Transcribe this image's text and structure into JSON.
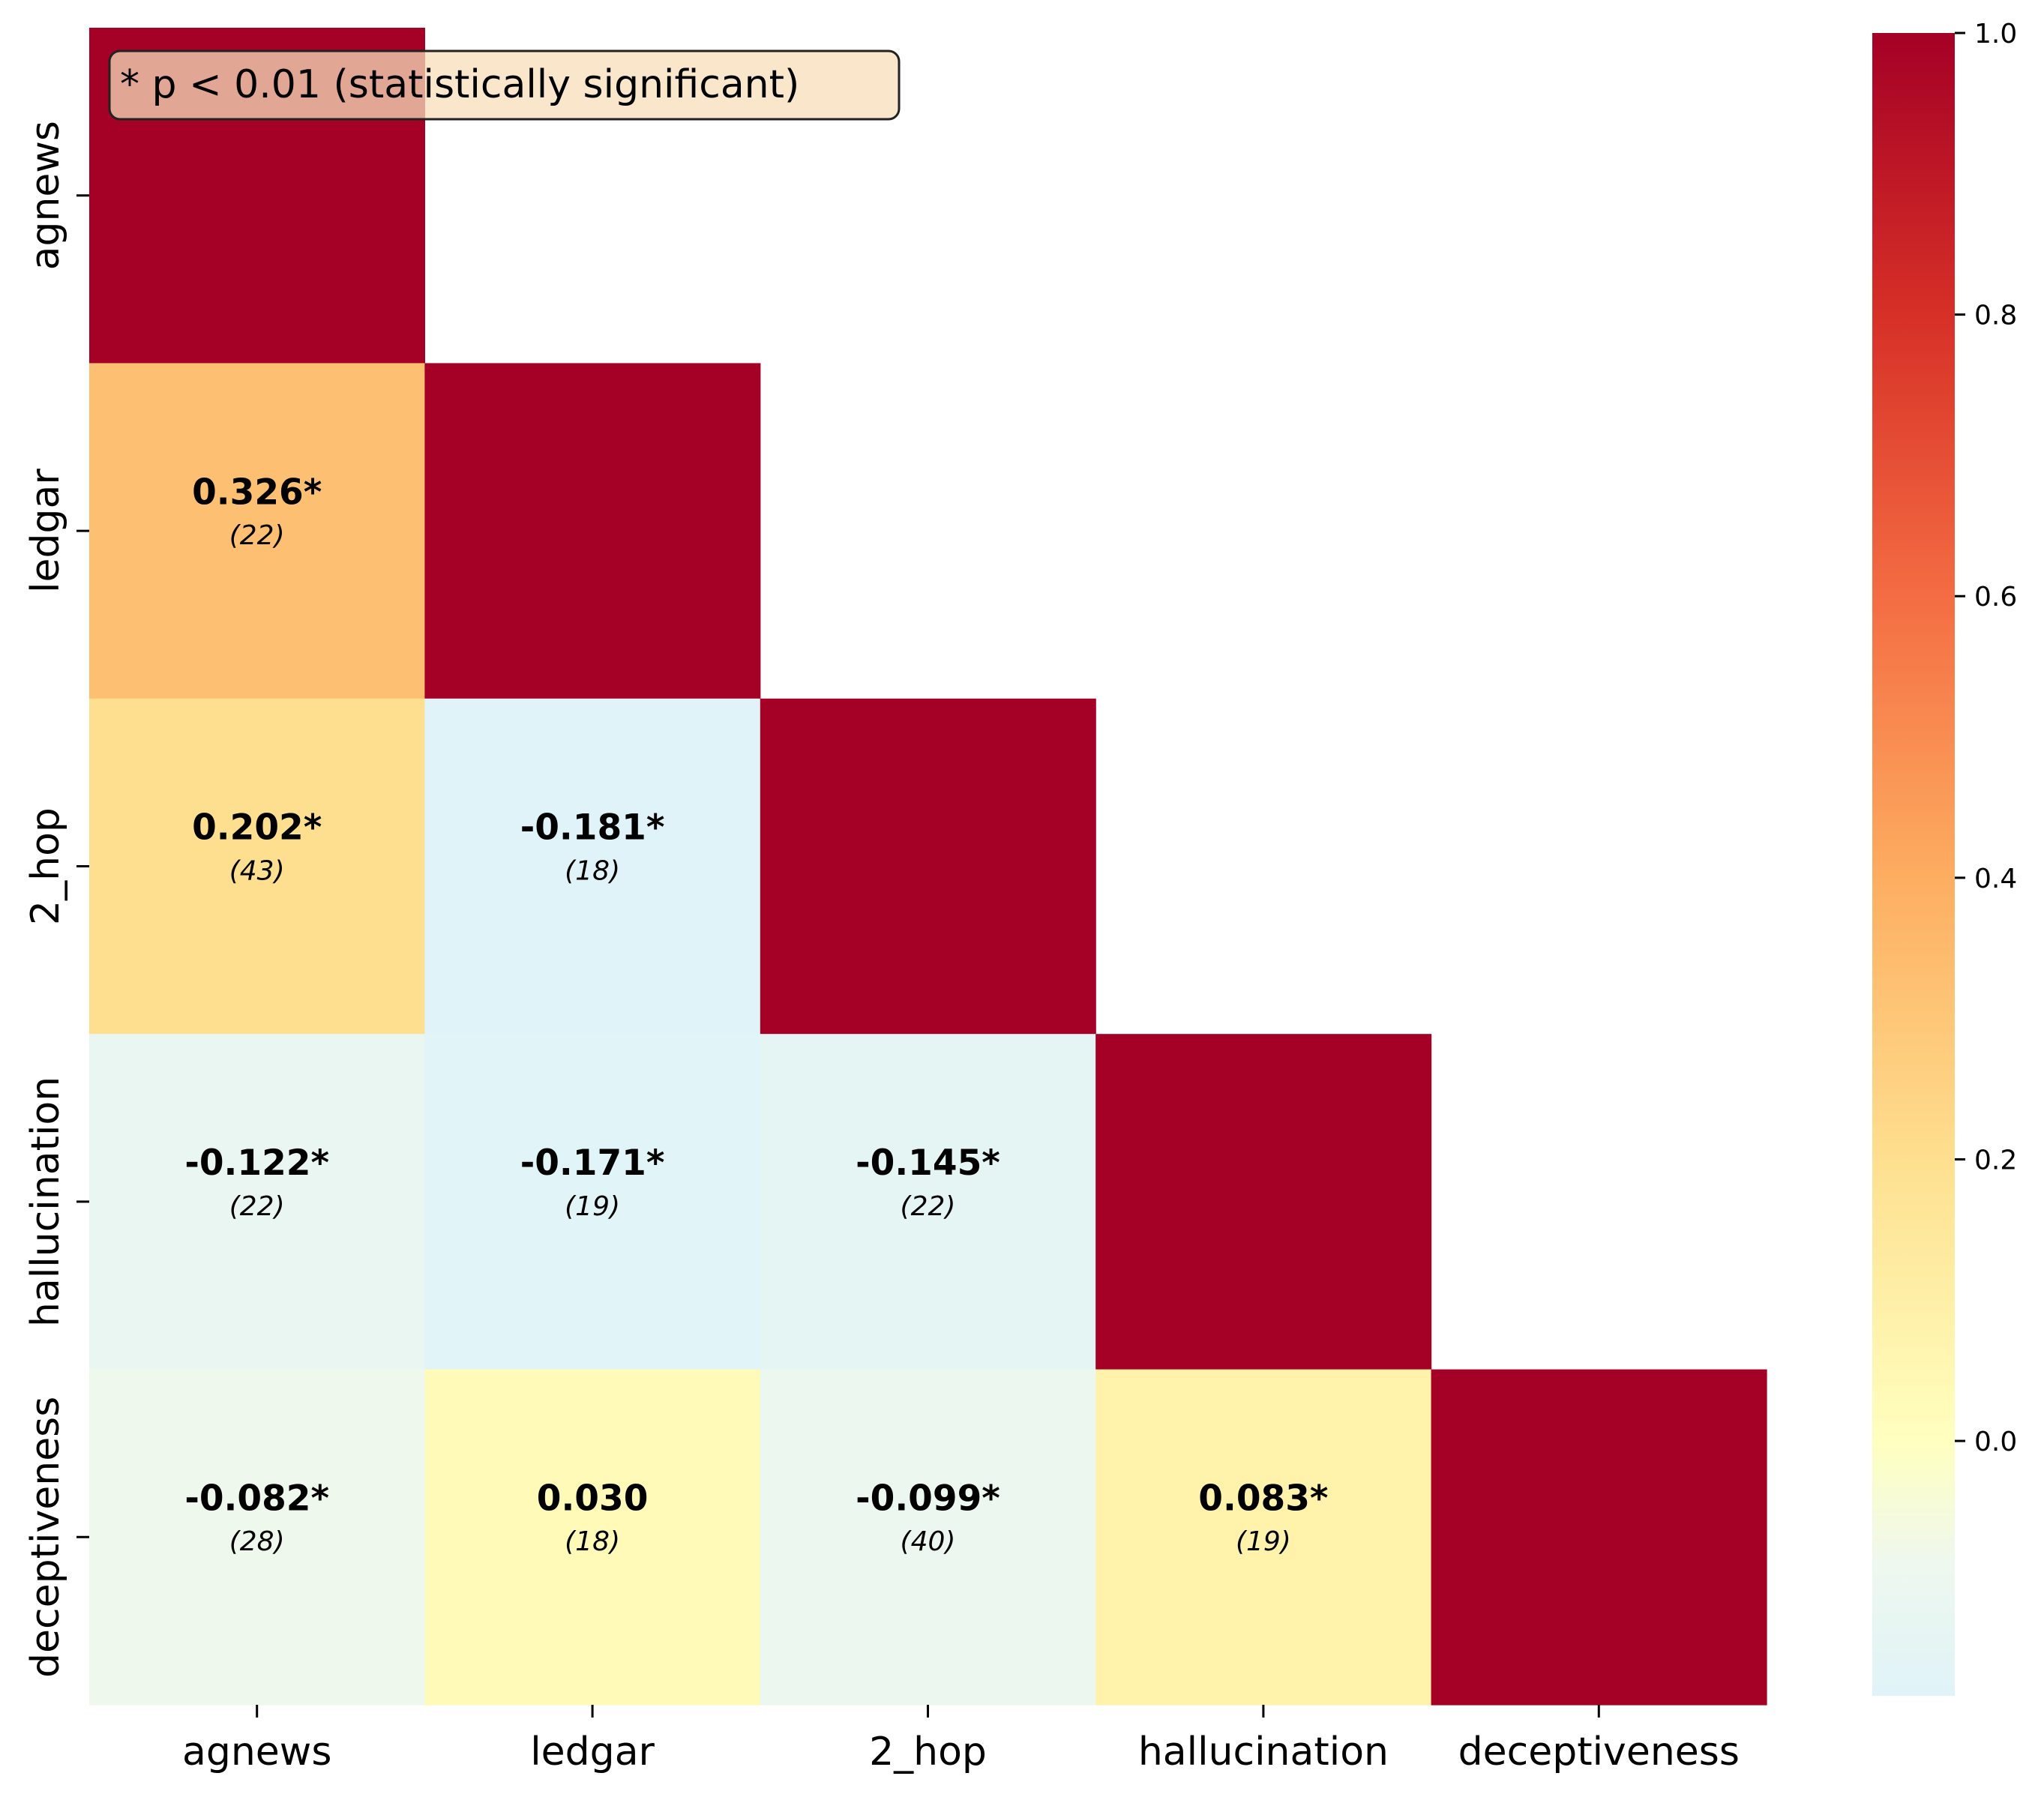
{
  "chart_data": {
    "type": "heatmap",
    "title": "",
    "xlabel": "",
    "ylabel": "",
    "categories": [
      "agnews",
      "ledgar",
      "2_hop",
      "hallucination",
      "deceptiveness"
    ],
    "mask": "lower-triangle",
    "cells": [
      {
        "row": 0,
        "col": 0,
        "value": 1.0
      },
      {
        "row": 1,
        "col": 0,
        "value": 0.326,
        "label": "0.326*",
        "n": "(22)"
      },
      {
        "row": 1,
        "col": 1,
        "value": 1.0
      },
      {
        "row": 2,
        "col": 0,
        "value": 0.202,
        "label": "0.202*",
        "n": "(43)"
      },
      {
        "row": 2,
        "col": 1,
        "value": -0.181,
        "label": "-0.181*",
        "n": "(18)"
      },
      {
        "row": 2,
        "col": 2,
        "value": 1.0
      },
      {
        "row": 3,
        "col": 0,
        "value": -0.122,
        "label": "-0.122*",
        "n": "(22)"
      },
      {
        "row": 3,
        "col": 1,
        "value": -0.171,
        "label": "-0.171*",
        "n": "(19)"
      },
      {
        "row": 3,
        "col": 2,
        "value": -0.145,
        "label": "-0.145*",
        "n": "(22)"
      },
      {
        "row": 3,
        "col": 3,
        "value": 1.0
      },
      {
        "row": 4,
        "col": 0,
        "value": -0.082,
        "label": "-0.082*",
        "n": "(28)"
      },
      {
        "row": 4,
        "col": 1,
        "value": 0.03,
        "label": "0.030",
        "n": "(18)"
      },
      {
        "row": 4,
        "col": 2,
        "value": -0.099,
        "label": "-0.099*",
        "n": "(40)"
      },
      {
        "row": 4,
        "col": 3,
        "value": 0.083,
        "label": "0.083*",
        "n": "(19)"
      },
      {
        "row": 4,
        "col": 4,
        "value": 1.0
      }
    ],
    "colorbar": {
      "colormap": "RdYlBu_r",
      "vmin": -0.181,
      "vmax": 1.0,
      "ticks": [
        0.0,
        0.2,
        0.4,
        0.6,
        0.8,
        1.0
      ],
      "tick_labels": [
        "0.0",
        "0.2",
        "0.4",
        "0.6",
        "0.8",
        "1.0"
      ]
    },
    "annotation": "* p < 0.01 (statistically significant)",
    "grid": false,
    "legend": "none"
  }
}
